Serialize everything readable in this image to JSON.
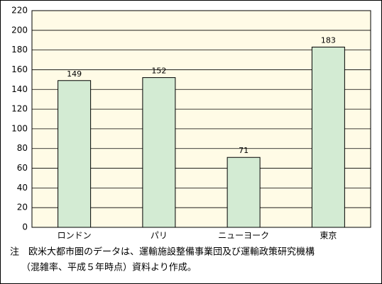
{
  "chart_data": {
    "type": "bar",
    "categories": [
      "ロンドン",
      "パリ",
      "ニューヨーク",
      "東京"
    ],
    "values": [
      149,
      152,
      71,
      183
    ],
    "color": "#d3ebd3",
    "ylim": [
      0,
      220
    ],
    "yticks": [
      0,
      20,
      40,
      60,
      80,
      100,
      120,
      140,
      160,
      180,
      200,
      220
    ],
    "grid": true,
    "notes": [
      "注　欧米大都市圏のデータは、運輸施設整備事業団及び運輸政策研究機構",
      "（混雑率、平成５年時点）資料より作成。"
    ]
  }
}
